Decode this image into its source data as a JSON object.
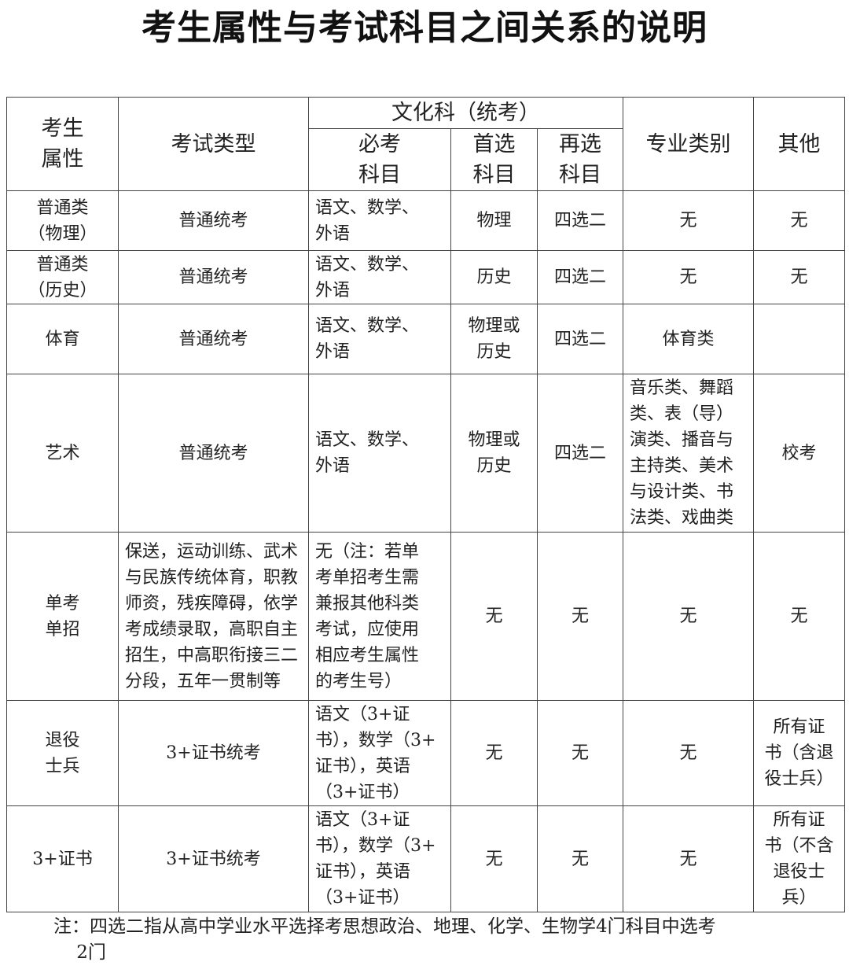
{
  "title": "考生属性与考试科目之间关系的说明",
  "header": {
    "attr": "考生\n属性",
    "exam_type": "考试类型",
    "culture": "文化科（统考）",
    "required": "必考\n科目",
    "first": "首选\n科目",
    "second": "再选\n科目",
    "major": "专业类别",
    "other": "其他"
  },
  "rows": [
    {
      "attr": "普通类\n（物理）",
      "exam_type": "普通统考",
      "required": "语文、数学、\n外语",
      "first": "物理",
      "second": "四选二",
      "major": "无",
      "other": "无"
    },
    {
      "attr": "普通类\n（历史）",
      "exam_type": "普通统考",
      "required": "语文、数学、\n外语",
      "first": "历史",
      "second": "四选二",
      "major": "无",
      "other": "无"
    },
    {
      "attr": "体育",
      "exam_type": "普通统考",
      "required": "语文、数学、\n外语",
      "first": "物理或\n历史",
      "second": "四选二",
      "major": "体育类",
      "other": ""
    },
    {
      "attr": "艺术",
      "exam_type": "普通统考",
      "required": "语文、数学、\n外语",
      "first": "物理或\n历史",
      "second": "四选二",
      "major": "音乐类、舞蹈\n类、表（导）\n演类、播音与\n主持类、美术\n与设计类、书\n法类、戏曲类",
      "other": "校考"
    },
    {
      "attr": "单考\n单招",
      "exam_type": "保送，运动训练、武术\n与民族传统体育，职教\n师资，残疾障碍，依学\n考成绩录取，高职自主\n招生，中高职衔接三二\n分段，五年一贯制等",
      "required": "无（注：若单\n考单招考生需\n兼报其他科类\n考试，应使用\n相应考生属性\n的考生号）",
      "first": "无",
      "second": "无",
      "major": "无",
      "other": "无"
    },
    {
      "attr": "退役\n士兵",
      "exam_type": "3+证书统考",
      "required": "语文（3+证\n书），数学（3+\n证书），英语\n（3+证书）",
      "first": "无",
      "second": "无",
      "major": "无",
      "other": "所有证\n书（含退\n役士兵）"
    },
    {
      "attr": "3+证书",
      "exam_type": "3+证书统考",
      "required": "语文（3+证\n书），数学（3+\n证书），英语\n（3+证书）",
      "first": "无",
      "second": "无",
      "major": "无",
      "other": "所有证\n书（不含\n退役士\n兵）"
    }
  ],
  "note": "注：四选二指从高中学业水平选择考思想政治、地理、化学、生物学4门科目中选考\n    2门"
}
